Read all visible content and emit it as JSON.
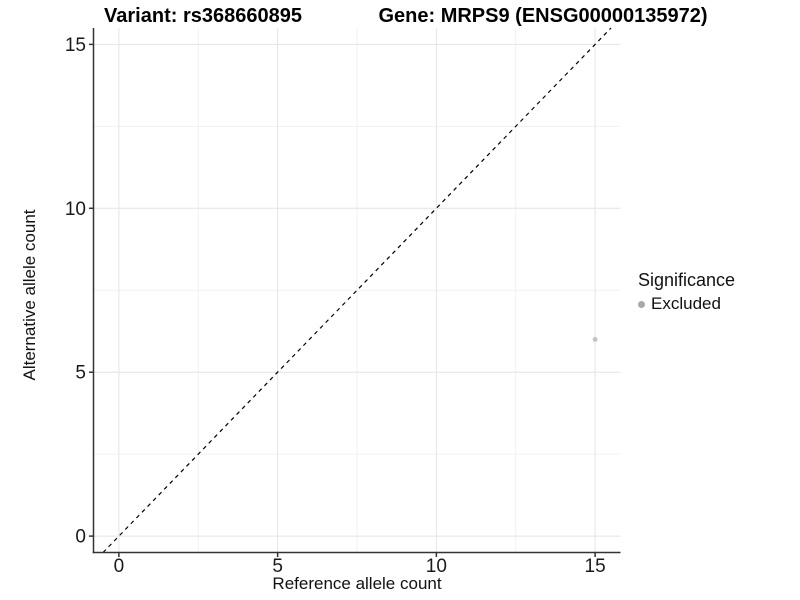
{
  "chart_data": {
    "type": "scatter",
    "title_left": "Variant: rs368660895",
    "title_right": "Gene: MRPS9 (ENSG00000135972)",
    "xlabel": "Reference allele count",
    "ylabel": "Alternative allele count",
    "xlim": [
      -0.8,
      15.8
    ],
    "ylim": [
      -0.5,
      15.5
    ],
    "x_ticks": [
      0,
      5,
      10,
      15
    ],
    "y_ticks": [
      0,
      5,
      10,
      15
    ],
    "x_minor_ticks": [
      2.5,
      7.5,
      12.5
    ],
    "y_minor_ticks": [
      2.5,
      7.5,
      12.5
    ],
    "grid": "major+minor",
    "identity_line": {
      "type": "abline",
      "slope": 1,
      "intercept": 0,
      "style": "dashed",
      "color": "#000000"
    },
    "series": [
      {
        "name": "Excluded",
        "color": "#b9b9b9",
        "point_opacity": 0.85,
        "points": [
          {
            "x": 15,
            "y": 6
          }
        ]
      }
    ],
    "legend": {
      "title": "Significance",
      "position": "right",
      "entries": [
        {
          "label": "Excluded",
          "color": "#a9a9a9"
        }
      ]
    }
  },
  "colors": {
    "background": "#ffffff",
    "grid_major": "#e4e4e4",
    "grid_minor": "#f1f1f1",
    "axis_line": "#333333",
    "tick_text": "#1a1a1a",
    "title_text": "#000000"
  }
}
